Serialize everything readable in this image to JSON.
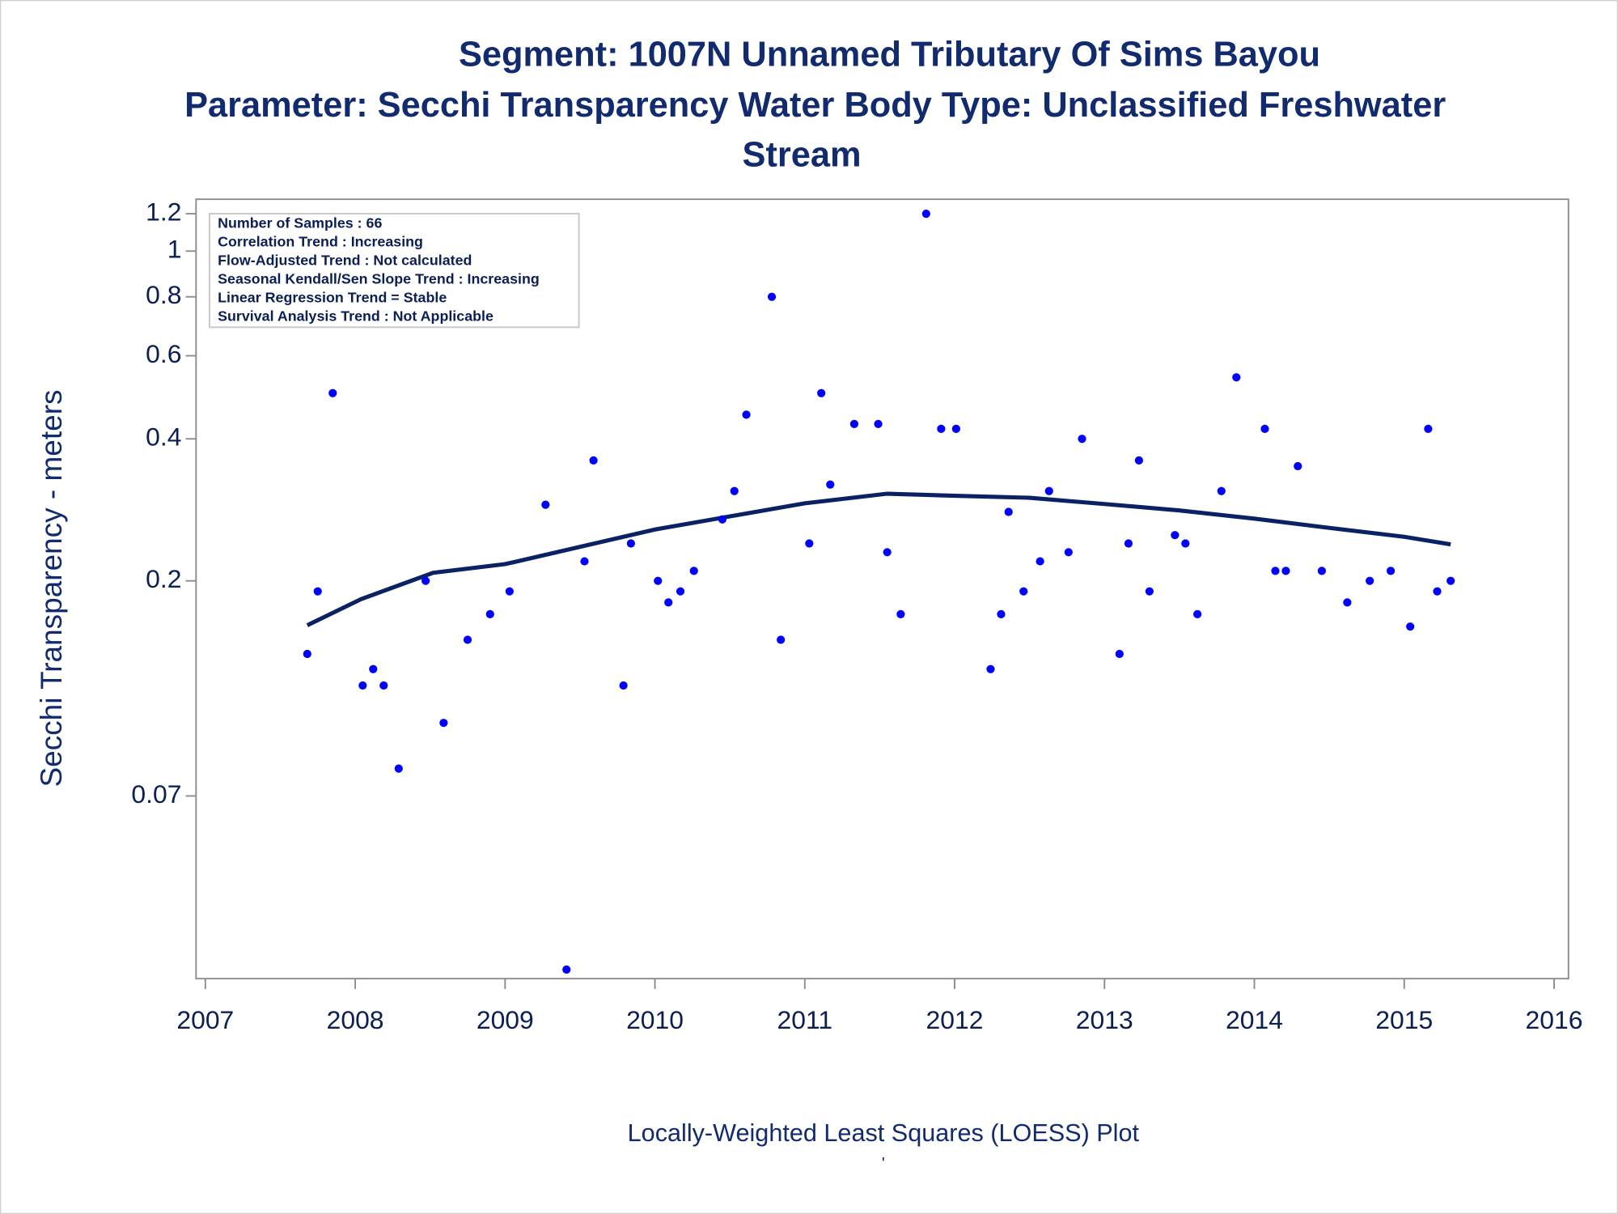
{
  "chart_data": {
    "type": "scatter",
    "title": "Segment: 1007N  Unnamed Tributary Of Sims Bayou",
    "subtitle": [
      "Parameter: Secchi Transparency   Water Body Type: Unclassified Freshwater",
      "Stream"
    ],
    "y_label": "Secchi Transparency - meters",
    "footnote": "Locally-Weighted Least Squares (LOESS) Plot",
    "footnote_mark": "'",
    "annotations": [
      "Number of Samples : 66",
      "Correlation Trend : Increasing",
      "Flow-Adjusted Trend : Not calculated",
      "Seasonal Kendall/Sen Slope Trend : Increasing",
      "Linear Regression Trend = Stable",
      "Survival Analysis Trend : Not Applicable"
    ],
    "log_y": true,
    "xlim": [
      2006.938,
      2016.096
    ],
    "xticks": [
      2007,
      2008,
      2009,
      2010,
      2011,
      2012,
      2013,
      2014,
      2015,
      2016
    ],
    "ylim": [
      0.0287,
      1.288
    ],
    "yticks": [
      0.07,
      0.2,
      0.4,
      0.6,
      0.8,
      1,
      1.2
    ],
    "color": "#0000ff",
    "x": [
      2007.68,
      2007.75,
      2007.85,
      2008.05,
      2008.12,
      2008.19,
      2008.29,
      2008.47,
      2008.59,
      2008.75,
      2008.9,
      2009.03,
      2009.27,
      2009.41,
      2009.53,
      2009.59,
      2009.79,
      2009.84,
      2010.02,
      2010.09,
      2010.17,
      2010.26,
      2010.45,
      2010.53,
      2010.61,
      2010.78,
      2010.84,
      2011.03,
      2011.11,
      2011.17,
      2011.33,
      2011.49,
      2011.55,
      2011.64,
      2011.81,
      2011.91,
      2012.01,
      2012.24,
      2012.31,
      2012.36,
      2012.46,
      2012.57,
      2012.63,
      2012.76,
      2012.85,
      2013.1,
      2013.16,
      2013.23,
      2013.3,
      2013.47,
      2013.54,
      2013.62,
      2013.78,
      2013.88,
      2014.07,
      2014.14,
      2014.21,
      2014.29,
      2014.45,
      2014.62,
      2014.77,
      2014.91,
      2015.04,
      2015.16,
      2015.22,
      2015.31
    ],
    "values": [
      0.14,
      0.19,
      0.5,
      0.12,
      0.13,
      0.12,
      0.08,
      0.2,
      0.1,
      0.15,
      0.17,
      0.19,
      0.29,
      0.03,
      0.22,
      0.36,
      0.12,
      0.24,
      0.2,
      0.18,
      0.19,
      0.21,
      0.27,
      0.31,
      0.45,
      0.8,
      0.15,
      0.24,
      0.5,
      0.32,
      0.43,
      0.43,
      0.23,
      0.17,
      1.2,
      0.42,
      0.42,
      0.13,
      0.17,
      0.28,
      0.19,
      0.22,
      0.31,
      0.23,
      0.4,
      0.14,
      0.24,
      0.36,
      0.19,
      0.25,
      0.24,
      0.17,
      0.31,
      0.54,
      0.42,
      0.21,
      0.21,
      0.35,
      0.21,
      0.18,
      0.2,
      0.21,
      0.16,
      0.42,
      0.19,
      0.2
    ],
    "fit": {
      "color": "#0a2164",
      "x": [
        2007.68,
        2008.04,
        2008.52,
        2009.0,
        2010.0,
        2011.0,
        2011.55,
        2012.0,
        2012.5,
        2013.0,
        2013.5,
        2014.0,
        2014.5,
        2015.0,
        2015.31
      ],
      "values": [
        0.161,
        0.183,
        0.208,
        0.217,
        0.257,
        0.292,
        0.306,
        0.303,
        0.3,
        0.291,
        0.282,
        0.271,
        0.259,
        0.248,
        0.239
      ]
    }
  }
}
